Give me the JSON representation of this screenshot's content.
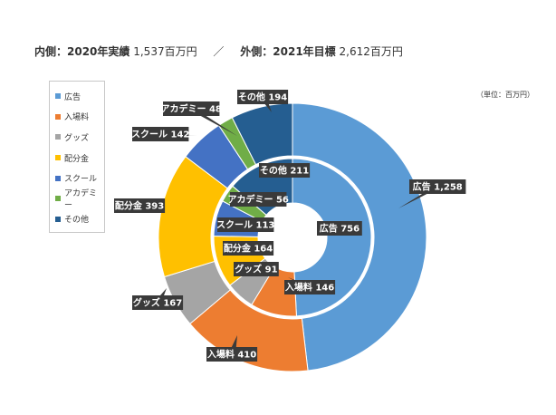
{
  "header": {
    "inner_label": "内側：2020年実績",
    "inner_value": "1,537百万円",
    "separator": "／",
    "outer_label": "外側：2021年目標",
    "outer_value": "2,612百万円"
  },
  "unit_note": "（単位：百万円）",
  "colors": {
    "広告": "#5b9bd5",
    "入場料": "#ed7d31",
    "グッズ": "#a5a5a5",
    "配分金": "#ffc000",
    "スクール": "#4472c4",
    "アカデミー": "#70ad47",
    "その他": "#255e91"
  },
  "chart_data": {
    "type": "pie",
    "subtype": "donut",
    "title": "",
    "legend_position": "left",
    "categories": [
      "広告",
      "入場料",
      "グッズ",
      "配分金",
      "スクール",
      "アカデミー",
      "その他"
    ],
    "series": [
      {
        "name": "2021年目標",
        "ring": "outer",
        "values": [
          1258,
          410,
          167,
          393,
          142,
          48,
          194
        ],
        "labels": [
          "広告 1,258",
          "入場料 410",
          "グッズ 167",
          "配分金 393",
          "スクール 142",
          "アカデミー 48",
          "その他 194"
        ]
      },
      {
        "name": "2020年実績",
        "ring": "inner",
        "values": [
          756,
          146,
          91,
          164,
          113,
          56,
          211
        ],
        "labels": [
          "広告 756",
          "入場料 146",
          "グッズ 91",
          "配分金 164",
          "スクール 113",
          "アカデミー 56",
          "その他 211"
        ]
      }
    ]
  }
}
